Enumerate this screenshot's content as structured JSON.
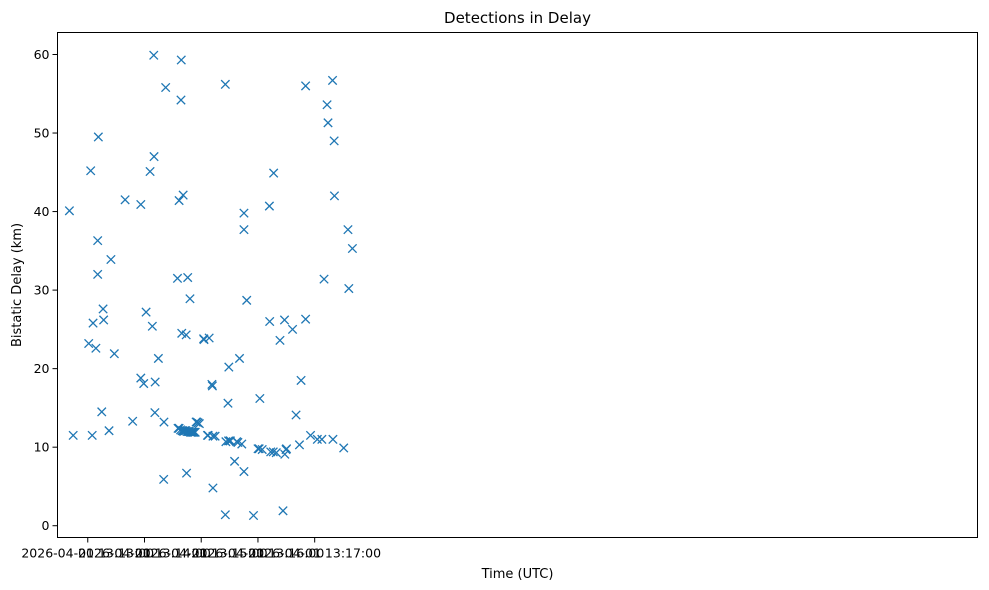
{
  "chart_data": {
    "type": "scatter",
    "title": "Detections in Delay",
    "xlabel": "Time (UTC)",
    "ylabel": "Bistatic Delay (km)",
    "marker": "x",
    "color": "#1f77b4",
    "x_unit": "seconds after 2026-04-01 13:12:00",
    "xlim": [
      28,
      1001
    ],
    "ylim": [
      -1.5,
      62.8
    ],
    "x_ticks": [
      {
        "value": 60,
        "label": "2026-04-01 13:13:00"
      },
      {
        "value": 120,
        "label": "2026-04-01 13:14:00"
      },
      {
        "value": 180,
        "label": "2026-04-01 13:15:00"
      },
      {
        "value": 240,
        "label": "2026-04-01 13:16:00"
      },
      {
        "value": 300,
        "label": "2026-04-01 13:17:00"
      }
    ],
    "y_ticks": [
      {
        "value": 0,
        "label": "0"
      },
      {
        "value": 10,
        "label": "10"
      },
      {
        "value": 20,
        "label": "20"
      },
      {
        "value": 30,
        "label": "30"
      },
      {
        "value": 40,
        "label": "40"
      },
      {
        "value": 50,
        "label": "50"
      },
      {
        "value": 60,
        "label": "60"
      }
    ],
    "points": [
      [
        40.6,
        40.1
      ],
      [
        44.6,
        11.5
      ],
      [
        61.0,
        23.2
      ],
      [
        63.1,
        45.2
      ],
      [
        64.7,
        11.5
      ],
      [
        65.6,
        25.8
      ],
      [
        68.6,
        22.6
      ],
      [
        70.5,
        36.3
      ],
      [
        70.5,
        32.0
      ],
      [
        71.2,
        49.5
      ],
      [
        74.8,
        14.5
      ],
      [
        76.2,
        27.6
      ],
      [
        76.8,
        26.2
      ],
      [
        82.5,
        12.1
      ],
      [
        84.5,
        33.9
      ],
      [
        88.1,
        21.9
      ],
      [
        99.5,
        41.5
      ],
      [
        107.5,
        13.3
      ],
      [
        116.1,
        40.9
      ],
      [
        116.1,
        18.8
      ],
      [
        119.2,
        18.1
      ],
      [
        121.7,
        27.2
      ],
      [
        125.9,
        45.1
      ],
      [
        128.3,
        25.4
      ],
      [
        129.8,
        59.9
      ],
      [
        130.1,
        47.0
      ],
      [
        131.0,
        14.4
      ],
      [
        131.3,
        18.3
      ],
      [
        134.7,
        21.3
      ],
      [
        140.3,
        5.9
      ],
      [
        140.6,
        13.2
      ],
      [
        142.4,
        55.8
      ],
      [
        154.9,
        31.5
      ],
      [
        155.5,
        12.4
      ],
      [
        156.6,
        12.4
      ],
      [
        156.6,
        41.4
      ],
      [
        158.2,
        12.2
      ],
      [
        158.6,
        54.2
      ],
      [
        158.9,
        59.3
      ],
      [
        159.4,
        24.5
      ],
      [
        159.7,
        12.1
      ],
      [
        160.6,
        12.1
      ],
      [
        160.9,
        42.1
      ],
      [
        161.5,
        12.0
      ],
      [
        162.5,
        12.1
      ],
      [
        163.7,
        12.1
      ],
      [
        164.1,
        24.3
      ],
      [
        164.5,
        6.7
      ],
      [
        165.1,
        12.0
      ],
      [
        165.7,
        31.6
      ],
      [
        166.2,
        12.0
      ],
      [
        166.9,
        12.0
      ],
      [
        167.5,
        12.0
      ],
      [
        168.1,
        28.9
      ],
      [
        168.6,
        11.9
      ],
      [
        169.4,
        11.9
      ],
      [
        170.2,
        11.9
      ],
      [
        171.2,
        11.9
      ],
      [
        172.0,
        11.9
      ],
      [
        172.7,
        11.9
      ],
      [
        173.7,
        11.9
      ],
      [
        174.6,
        13.2
      ],
      [
        175.4,
        13.2
      ],
      [
        176.7,
        13.1
      ],
      [
        178.0,
        13.0
      ],
      [
        182.6,
        23.8
      ],
      [
        182.9,
        23.7
      ],
      [
        186.6,
        11.5
      ],
      [
        187.3,
        11.5
      ],
      [
        188.4,
        23.9
      ],
      [
        191.3,
        18.0
      ],
      [
        191.8,
        17.8
      ],
      [
        192.4,
        4.8
      ],
      [
        192.4,
        11.4
      ],
      [
        194.7,
        11.4
      ],
      [
        205.5,
        56.2
      ],
      [
        205.5,
        1.4
      ],
      [
        206.1,
        10.7
      ],
      [
        208.3,
        15.6
      ],
      [
        208.9,
        10.8
      ],
      [
        209.2,
        20.2
      ],
      [
        210.3,
        10.8
      ],
      [
        210.9,
        10.8
      ],
      [
        215.3,
        8.2
      ],
      [
        217.5,
        10.7
      ],
      [
        218.8,
        10.6
      ],
      [
        220.5,
        21.3
      ],
      [
        222.9,
        10.4
      ],
      [
        225.2,
        39.8
      ],
      [
        225.2,
        37.7
      ],
      [
        225.2,
        6.9
      ],
      [
        228.1,
        28.7
      ],
      [
        235.3,
        1.3
      ],
      [
        240.1,
        9.8
      ],
      [
        241.3,
        9.8
      ],
      [
        242.0,
        16.2
      ],
      [
        244.5,
        9.7
      ],
      [
        252.1,
        40.7
      ],
      [
        252.4,
        26.0
      ],
      [
        253.5,
        9.4
      ],
      [
        256.2,
        9.4
      ],
      [
        256.6,
        44.9
      ],
      [
        259.4,
        9.3
      ],
      [
        263.3,
        23.6
      ],
      [
        266.5,
        1.9
      ],
      [
        268.1,
        26.2
      ],
      [
        268.4,
        9.1
      ],
      [
        269.7,
        9.7
      ],
      [
        270.2,
        9.8
      ],
      [
        276.6,
        25.0
      ],
      [
        280.3,
        14.1
      ],
      [
        283.9,
        10.3
      ],
      [
        285.6,
        18.5
      ],
      [
        290.4,
        26.3
      ],
      [
        290.4,
        56.0
      ],
      [
        295.6,
        11.5
      ],
      [
        302.8,
        11.0
      ],
      [
        307.6,
        11.0
      ],
      [
        309.9,
        31.4
      ],
      [
        313.1,
        53.6
      ],
      [
        314.1,
        51.3
      ],
      [
        318.9,
        56.7
      ],
      [
        319.3,
        11.0
      ],
      [
        320.6,
        49.0
      ],
      [
        320.9,
        42.0
      ],
      [
        330.7,
        9.9
      ],
      [
        335.2,
        37.7
      ],
      [
        336.1,
        30.2
      ],
      [
        339.9,
        35.3
      ]
    ]
  }
}
